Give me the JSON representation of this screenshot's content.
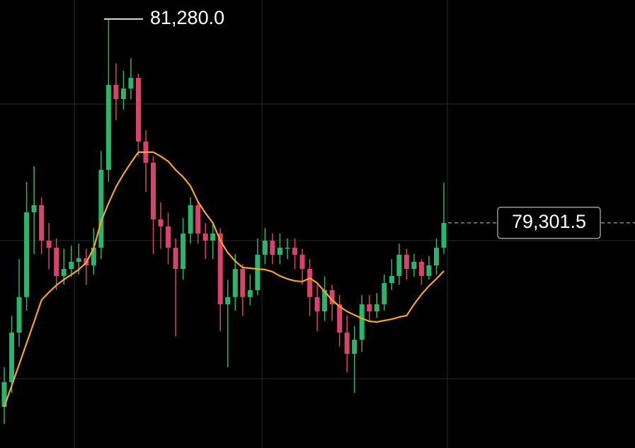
{
  "chart_data": {
    "type": "candlestick",
    "ylim": [
      77116,
      81465
    ],
    "up_color": "#2eb36a",
    "down_color": "#d6436b",
    "ma_color": "#f5a623",
    "open": [
      77515,
      77755,
      78236,
      78581,
      79404,
      79473,
      79129,
      79060,
      78786,
      78854,
      78923,
      78958,
      78889,
      79060,
      79816,
      80641,
      80503,
      80606,
      80709,
      80091,
      79885,
      79335,
      79267,
      79060,
      78854,
      79198,
      79473,
      79198,
      79129,
      79198,
      78511,
      78581,
      78854,
      78581,
      78648,
      78992,
      79129,
      78992,
      79060,
      79060,
      78992,
      78854,
      78581,
      78442,
      78648,
      78511,
      78236,
      78030,
      78167,
      78511,
      78442,
      78511,
      78717,
      78786,
      78992,
      78854,
      78923,
      78786,
      78889,
      79060
    ],
    "close": [
      77755,
      78236,
      78581,
      79404,
      79473,
      79129,
      79060,
      78786,
      78854,
      78923,
      78958,
      78889,
      79060,
      79816,
      80641,
      80503,
      80606,
      80709,
      80091,
      79885,
      79335,
      79267,
      79060,
      78854,
      79198,
      79473,
      79198,
      79129,
      79198,
      78511,
      78581,
      78854,
      78581,
      78648,
      78992,
      79129,
      78992,
      79060,
      79060,
      78992,
      78854,
      78581,
      78442,
      78648,
      78511,
      78236,
      78030,
      78167,
      78511,
      78442,
      78511,
      78717,
      78786,
      78992,
      78854,
      78923,
      78786,
      78889,
      79060,
      79301.5
    ],
    "high": [
      77900,
      78400,
      78950,
      79700,
      79850,
      79550,
      79300,
      79150,
      79050,
      79080,
      79100,
      79050,
      79250,
      80000,
      81280,
      80850,
      80780,
      80900,
      80750,
      80200,
      79950,
      79500,
      79400,
      79150,
      79350,
      79550,
      79500,
      79300,
      79300,
      79250,
      78750,
      79000,
      78900,
      78800,
      79150,
      79250,
      79200,
      79200,
      79150,
      79150,
      79050,
      78950,
      78700,
      78780,
      78700,
      78600,
      78400,
      78300,
      78600,
      78600,
      78620,
      78800,
      78950,
      79100,
      79050,
      79000,
      78950,
      78980,
      79150,
      79690
    ],
    "low": [
      77350,
      77650,
      78100,
      78450,
      79000,
      79000,
      78850,
      78650,
      78700,
      78780,
      78800,
      78700,
      78800,
      78950,
      79700,
      80300,
      80400,
      80500,
      79950,
      79600,
      79000,
      79050,
      78900,
      78200,
      78750,
      79100,
      79100,
      78950,
      78950,
      78250,
      77900,
      78450,
      78400,
      78500,
      78600,
      78900,
      78900,
      78900,
      78950,
      78850,
      78700,
      78400,
      78250,
      78350,
      78350,
      78100,
      77850,
      77650,
      78050,
      78350,
      78380,
      78450,
      78650,
      78700,
      78750,
      78780,
      78700,
      78750,
      78800,
      79000
    ],
    "ma": [
      77515,
      77721,
      77927,
      78133,
      78339,
      78552,
      78628,
      78696,
      78751,
      78799,
      78848,
      78916,
      79054,
      79315,
      79493,
      79651,
      79775,
      79885,
      79988,
      79988,
      79988,
      79947,
      79899,
      79816,
      79748,
      79658,
      79507,
      79397,
      79301,
      79129,
      79012,
      78930,
      78868,
      78861,
      78854,
      78848,
      78827,
      78786,
      78758,
      78738,
      78731,
      78765,
      78717,
      78635,
      78552,
      78490,
      78442,
      78408,
      78374,
      78346,
      78339,
      78353,
      78367,
      78387,
      78401,
      78511,
      78607,
      78689,
      78758,
      78834
    ],
    "high_marker": {
      "value": 81280,
      "label": "81,280.0"
    },
    "last_price": {
      "value": 79301.5,
      "label": "79,301.5"
    }
  }
}
